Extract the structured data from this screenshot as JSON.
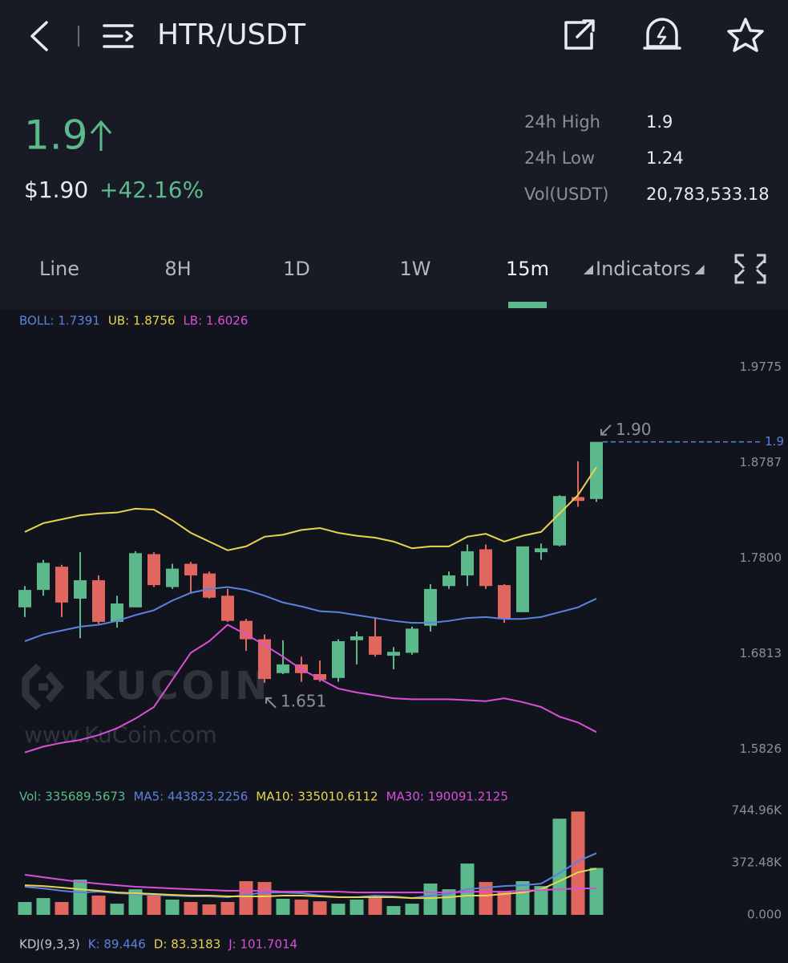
{
  "header": {
    "pair": "HTR/USDT"
  },
  "ticker": {
    "price": "1.9",
    "price_usd": "$1.90",
    "change": "+42.16%"
  },
  "stats": [
    {
      "label": "24h High",
      "value": "1.9"
    },
    {
      "label": "24h Low",
      "value": "1.24"
    },
    {
      "label": "Vol(USDT)",
      "value": "20,783,533.18"
    }
  ],
  "tabs": [
    "Line",
    "8H",
    "1D",
    "1W",
    "15m",
    "Indicators"
  ],
  "active_tab": 4,
  "watermark": {
    "brand": "KUCOIN",
    "url": "www.KuCoin.com"
  },
  "price_chart": {
    "type": "candlestick",
    "legend": [
      {
        "text": "BOLL: 1.7391",
        "color": "#5b82e0"
      },
      {
        "text": "UB: 1.8756",
        "color": "#e8d44d"
      },
      {
        "text": "LB: 1.6026",
        "color": "#d94fd9"
      }
    ],
    "open": [
      1.729,
      1.747,
      1.771,
      1.738,
      1.757,
      1.714,
      1.729,
      1.784,
      1.75,
      1.774,
      1.764,
      1.741,
      1.715,
      1.696,
      1.661,
      1.67,
      1.66,
      1.656,
      1.695,
      1.699,
      1.679,
      1.682,
      1.71,
      1.751,
      1.762,
      1.789,
      1.752,
      1.724,
      1.786,
      1.793,
      1.843,
      1.841
    ],
    "high": [
      1.751,
      1.778,
      1.773,
      1.786,
      1.762,
      1.741,
      1.787,
      1.786,
      1.774,
      1.776,
      1.766,
      1.748,
      1.717,
      1.701,
      1.695,
      1.678,
      1.674,
      1.696,
      1.704,
      1.719,
      1.688,
      1.709,
      1.753,
      1.766,
      1.794,
      1.794,
      1.753,
      1.792,
      1.795,
      1.845,
      1.88,
      1.9
    ],
    "low": [
      1.719,
      1.741,
      1.719,
      1.697,
      1.712,
      1.708,
      1.729,
      1.75,
      1.748,
      1.743,
      1.738,
      1.714,
      1.684,
      1.651,
      1.66,
      1.652,
      1.652,
      1.652,
      1.67,
      1.678,
      1.665,
      1.68,
      1.704,
      1.748,
      1.751,
      1.748,
      1.713,
      1.724,
      1.778,
      1.792,
      1.833,
      1.838
    ],
    "close": [
      1.747,
      1.775,
      1.734,
      1.757,
      1.714,
      1.733,
      1.785,
      1.752,
      1.769,
      1.762,
      1.739,
      1.715,
      1.696,
      1.655,
      1.67,
      1.661,
      1.654,
      1.694,
      1.699,
      1.68,
      1.683,
      1.707,
      1.748,
      1.762,
      1.787,
      1.751,
      1.717,
      1.792,
      1.79,
      1.844,
      1.839,
      1.9
    ],
    "up_color": "#5bb98b",
    "down_color": "#e0665f",
    "lines": [
      {
        "color": "#e8d44d",
        "values": [
          1.807,
          1.816,
          1.82,
          1.824,
          1.826,
          1.827,
          1.831,
          1.83,
          1.819,
          1.806,
          1.797,
          1.788,
          1.792,
          1.802,
          1.804,
          1.809,
          1.811,
          1.806,
          1.803,
          1.801,
          1.797,
          1.79,
          1.792,
          1.792,
          1.802,
          1.805,
          1.797,
          1.803,
          1.807,
          1.826,
          1.845,
          1.874
        ]
      },
      {
        "color": "#5b82e0",
        "values": [
          1.694,
          1.701,
          1.705,
          1.709,
          1.711,
          1.715,
          1.721,
          1.726,
          1.736,
          1.744,
          1.748,
          1.75,
          1.747,
          1.741,
          1.734,
          1.73,
          1.725,
          1.724,
          1.721,
          1.718,
          1.715,
          1.713,
          1.713,
          1.715,
          1.718,
          1.719,
          1.717,
          1.717,
          1.719,
          1.724,
          1.729,
          1.738
        ]
      },
      {
        "color": "#d94fd9",
        "values": [
          1.579,
          1.585,
          1.589,
          1.592,
          1.597,
          1.604,
          1.614,
          1.626,
          1.654,
          1.682,
          1.694,
          1.711,
          1.701,
          1.69,
          1.678,
          1.665,
          1.655,
          1.645,
          1.641,
          1.638,
          1.635,
          1.634,
          1.634,
          1.634,
          1.633,
          1.632,
          1.635,
          1.631,
          1.626,
          1.616,
          1.61,
          1.6
        ]
      }
    ],
    "ylim": [
      1.548,
      2.025
    ],
    "yticks": [
      1.9775,
      1.8787,
      {
        "value": 1.78,
        "label": "1.7800"
      },
      1.6813,
      1.5826
    ],
    "last_price": 1.9,
    "high_label": {
      "value": 1.9,
      "label": "1.90"
    },
    "low_label": 1.651
  },
  "volume_chart": {
    "type": "bar",
    "legend": [
      {
        "text": "Vol: 335689.5673",
        "color": "#5bb98b"
      },
      {
        "text": "MA5: 443823.2256",
        "color": "#5b82e0"
      },
      {
        "text": "MA10: 335010.6112",
        "color": "#e8d44d"
      },
      {
        "text": "MA30: 190091.2125",
        "color": "#d94fd9"
      }
    ],
    "values": [
      92000,
      120000,
      92000,
      252000,
      138000,
      80000,
      183000,
      138000,
      109000,
      92000,
      75000,
      92000,
      241000,
      235000,
      115000,
      109000,
      97000,
      80000,
      109000,
      120000,
      63000,
      80000,
      224000,
      183000,
      367000,
      235000,
      166000,
      241000,
      206000,
      688000,
      739000,
      335690
    ],
    "lines": [
      {
        "color": "#5b82e0",
        "values": [
          201000,
          189000,
          172000,
          160000,
          166000,
          155000,
          149000,
          143000,
          138000,
          132000,
          132000,
          126000,
          143000,
          160000,
          160000,
          155000,
          138000,
          126000,
          126000,
          138000,
          132000,
          120000,
          138000,
          149000,
          183000,
          195000,
          206000,
          212000,
          223000,
          298000,
          384000,
          441000
        ]
      },
      {
        "color": "#e8d44d",
        "values": [
          212000,
          206000,
          195000,
          183000,
          172000,
          160000,
          155000,
          149000,
          143000,
          138000,
          138000,
          132000,
          132000,
          132000,
          138000,
          138000,
          132000,
          126000,
          126000,
          126000,
          126000,
          120000,
          120000,
          126000,
          138000,
          138000,
          149000,
          160000,
          183000,
          241000,
          304000,
          332000
        ]
      },
      {
        "color": "#d94fd9",
        "values": [
          287000,
          269000,
          252000,
          235000,
          223000,
          212000,
          201000,
          195000,
          189000,
          183000,
          178000,
          172000,
          172000,
          172000,
          166000,
          166000,
          166000,
          166000,
          160000,
          160000,
          160000,
          160000,
          160000,
          160000,
          166000,
          166000,
          166000,
          172000,
          178000,
          183000,
          189000,
          189000
        ]
      }
    ],
    "ylim": [
      0,
      775000
    ],
    "yticks": [
      {
        "value": 744960,
        "label": "744.96K"
      },
      {
        "value": 372480,
        "label": "372.48K"
      },
      {
        "value": 0,
        "label": "0.000"
      }
    ]
  },
  "kdj": {
    "legend": [
      {
        "text": "KDJ(9,3,3)",
        "color": "#c3c6ce"
      },
      {
        "text": "K: 89.446",
        "color": "#5b82e0"
      },
      {
        "text": "D: 83.3183",
        "color": "#e8d44d"
      },
      {
        "text": "J: 101.7014",
        "color": "#d94fd9"
      }
    ]
  }
}
